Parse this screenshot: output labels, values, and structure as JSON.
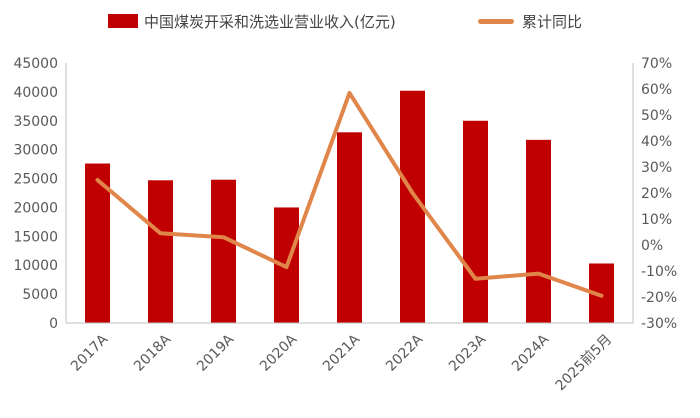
{
  "chart_data": {
    "type": "bar",
    "categories": [
      "2017A",
      "2018A",
      "2019A",
      "2020A",
      "2021A",
      "2022A",
      "2023A",
      "2024A",
      "2025前5月"
    ],
    "series": [
      {
        "name": "中国煤炭开采和洗选业营业收入(亿元)",
        "type": "bar",
        "axis": "left",
        "color": "#c00000",
        "values": [
          27600,
          24700,
          24800,
          20000,
          33000,
          40200,
          35000,
          31700,
          10300
        ]
      },
      {
        "name": "累计同比",
        "type": "line",
        "axis": "right",
        "color": "#e0864a",
        "values": [
          25,
          4.5,
          3,
          -8.5,
          58.5,
          20,
          -13,
          -11,
          -19.5
        ]
      }
    ],
    "left_axis": {
      "min": 0,
      "max": 45000,
      "ticks": [
        "0",
        "5000",
        "10000",
        "15000",
        "20000",
        "25000",
        "30000",
        "35000",
        "40000",
        "45000"
      ]
    },
    "right_axis": {
      "min": -30,
      "max": 70,
      "ticks": [
        "-30%",
        "-20%",
        "-10%",
        "0%",
        "10%",
        "20%",
        "30%",
        "40%",
        "50%",
        "60%",
        "70%"
      ]
    },
    "legend_position": "top",
    "grid": false
  }
}
